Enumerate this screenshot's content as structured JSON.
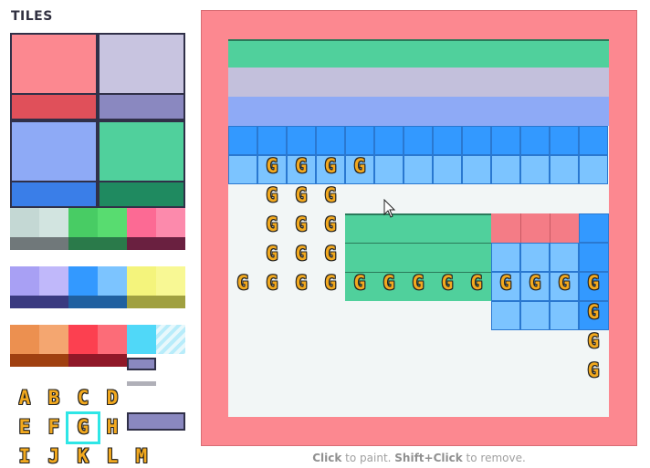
{
  "palette": {
    "title": "TILES",
    "letters": [
      "A",
      "B",
      "C",
      "D",
      "E",
      "F",
      "G",
      "H",
      "I",
      "J",
      "K",
      "L",
      "M"
    ],
    "selected_letter": "G"
  },
  "canvas": {
    "hint_click": "Click",
    "hint_mid": " to paint. ",
    "hint_shift": "Shift+Click",
    "hint_end": " to remove.",
    "glyph": "G"
  },
  "colors": {
    "frame": "#fc8890",
    "green": "#50d09c",
    "lavender": "#c3c0dc",
    "periwinkle": "#8eaaf6",
    "blue": "#3399ff",
    "light_blue": "#7cc4ff",
    "pink": "#f47c86",
    "selection": "#2ee6e6"
  }
}
